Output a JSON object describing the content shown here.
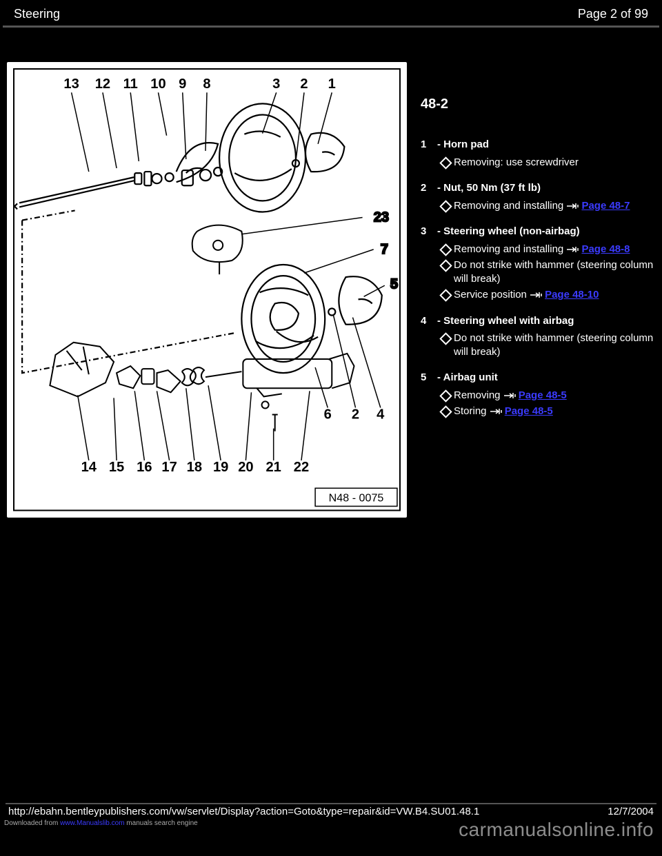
{
  "header": {
    "left": "Steering",
    "right": "Page 2 of 99"
  },
  "pageNum": "48-2",
  "items": [
    {
      "num": "1",
      "title": "- Horn pad",
      "subs": [
        {
          "type": "bullet",
          "text": "Removing: use screwdriver"
        }
      ]
    },
    {
      "num": "2",
      "title": "- Nut, 50 Nm (37 ft lb)",
      "subs": [
        {
          "type": "bullet",
          "text": "Removing and installing ",
          "link": "Page 48-7"
        }
      ]
    },
    {
      "num": "3",
      "title": "- Steering wheel (non-airbag)",
      "subs": [
        {
          "type": "bullet",
          "text": "Removing and installing ",
          "link": "Page 48-8"
        },
        {
          "type": "bullet",
          "text": "Do not strike with hammer (steering column will break)"
        },
        {
          "type": "bullet",
          "text": "Service position ",
          "link": "Page 48-10",
          "linkBefore": false
        }
      ]
    },
    {
      "num": "4",
      "title": "- Steering wheel with airbag",
      "subs": [
        {
          "type": "bullet",
          "text": "Do not strike with hammer (steering column will break)"
        }
      ]
    },
    {
      "num": "5",
      "title": "- Airbag unit",
      "subs": [
        {
          "type": "bullet",
          "text": "Removing ",
          "link": "Page 48-5"
        },
        {
          "type": "bullet",
          "text": "Storing ",
          "link": "Page 48-5"
        }
      ]
    }
  ],
  "footer": {
    "url": "http://ebahn.bentleypublishers.com/vw/servlet/Display?action=Goto&type=repair&id=VW.B4.SU01.48.1",
    "date": "12/7/2004"
  },
  "watermark": "carmanualsonline.info",
  "download": {
    "prefix": "Downloaded from ",
    "site": "www.Manualslib.com",
    "suffix": " manuals search engine"
  },
  "diagram": {
    "ref": "N48 - 0075",
    "top_labels": [
      "13",
      "12",
      "11",
      "10",
      "9",
      "8",
      "3",
      "2",
      "1"
    ],
    "bottom_labels": [
      "14",
      "15",
      "16",
      "17",
      "18",
      "19",
      "20",
      "21",
      "22"
    ],
    "side_labels": {
      "23": "23",
      "7": "7",
      "5": "5",
      "6": "6",
      "2b": "2",
      "4": "4"
    }
  }
}
